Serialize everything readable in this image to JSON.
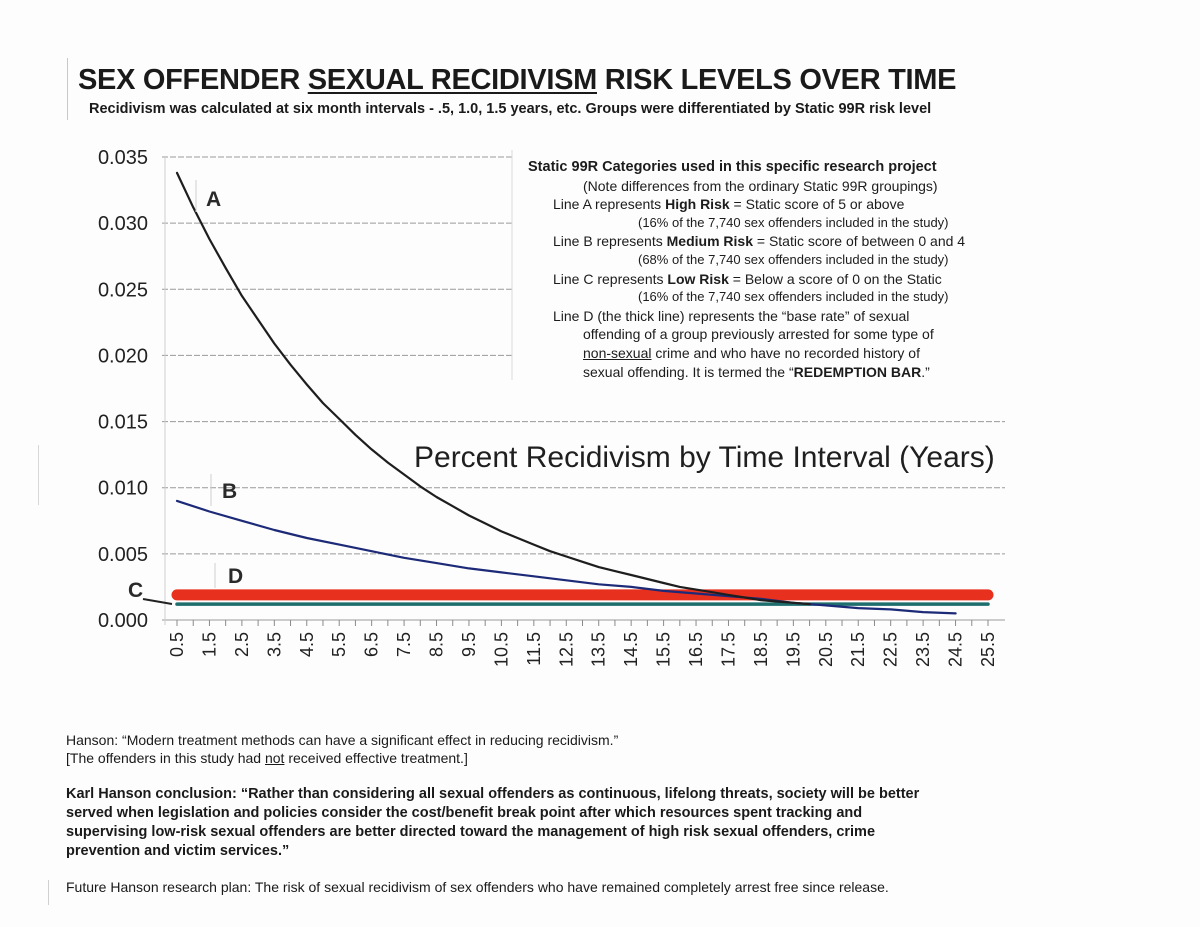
{
  "header": {
    "title_pre": "SEX OFFENDER ",
    "title_underlined": "SEXUAL RECIDIVISM",
    "title_post": " RISK LEVELS OVER TIME",
    "subtitle": "Recidivism was calculated at six month intervals - .5, 1.0, 1.5 years, etc.   Groups were differentiated by Static 99R risk level"
  },
  "legend": {
    "heading": "Static 99R Categories used in this specific research project",
    "note": "(Note differences from the ordinary Static 99R groupings)",
    "lineA_pre": "Line A represents ",
    "lineA_bold": "High Risk",
    "lineA_post": " = Static score of 5 or above",
    "lineA_share": "(16% of the 7,740 sex offenders included in the study)",
    "lineB_pre": "Line B represents ",
    "lineB_bold": "Medium Risk",
    "lineB_post": " = Static score of between 0 and 4",
    "lineB_share": "(68% of the 7,740 sex offenders included in the study)",
    "lineC_pre": "Line C represents ",
    "lineC_bold": "Low Risk",
    "lineC_post": " = Below a score of 0 on the Static",
    "lineC_share": "(16% of the 7,740 sex offenders included in the study)",
    "lineD_1": "Line D (the thick line) represents the “base rate” of sexual",
    "lineD_2": "offending of a group previously arrested for some type of",
    "lineD_3_underlined": "non-sexual",
    "lineD_3_post": " crime and who have no recorded history of",
    "lineD_4_pre": "sexual offending.  It is termed the “",
    "lineD_4_bold": "REDEMPTION BAR",
    "lineD_4_post": ".”"
  },
  "notes": {
    "quote1": "Hanson: “Modern treatment methods can have a significant effect in reducing recidivism.”",
    "bracket_pre": "[The offenders in this study had ",
    "bracket_underlined": "not",
    "bracket_post": " received effective treatment.]",
    "conclusion_1": "Karl Hanson conclusion: “Rather than considering all sexual offenders as continuous, lifelong threats, society will be better",
    "conclusion_2": "served when legislation and policies consider the cost/benefit break point after which resources spent tracking and",
    "conclusion_3": "supervising low-risk sexual offenders are better directed toward the management of high risk sexual offenders, crime",
    "conclusion_4": "prevention and victim services.”",
    "future": "Future Hanson research plan: The risk of sexual recidivism of sex offenders who have remained completely arrest free since release."
  },
  "chart_data": {
    "type": "line",
    "title": "Percent Recidivism by Time Interval (Years)",
    "xlabel": "",
    "ylabel": "",
    "ylim": [
      0,
      0.035
    ],
    "xlim": [
      0.5,
      25.5
    ],
    "yticks": [
      "0.000",
      "0.005",
      "0.010",
      "0.015",
      "0.020",
      "0.025",
      "0.030",
      "0.035"
    ],
    "ytick_values": [
      0,
      0.005,
      0.01,
      0.015,
      0.02,
      0.025,
      0.03,
      0.035
    ],
    "xticks": [
      "0.5",
      "1.5",
      "2.5",
      "3.5",
      "4.5",
      "5.5",
      "6.5",
      "7.5",
      "8.5",
      "9.5",
      "10.5",
      "11.5",
      "12.5",
      "13.5",
      "14.5",
      "15.5",
      "16.5",
      "17.5",
      "18.5",
      "19.5",
      "20.5",
      "21.5",
      "22.5",
      "23.5",
      "24.5",
      "25.5"
    ],
    "grid": true,
    "colors": {
      "A": "#1e1e1e",
      "B": "#1c2a78",
      "C": "#1f6e6e",
      "D": "#e8301e"
    },
    "series": [
      {
        "name": "A",
        "label": "A",
        "x": [
          0.5,
          1,
          1.5,
          2,
          2.5,
          3,
          3.5,
          4,
          4.5,
          5,
          5.5,
          6,
          6.5,
          7,
          7.5,
          8,
          8.5,
          9,
          9.5,
          10,
          10.5,
          11,
          11.5,
          12,
          12.5,
          13,
          13.5,
          14,
          14.5,
          15,
          15.5,
          16,
          16.5,
          17,
          17.5,
          18,
          18.5,
          19,
          19.5,
          20
        ],
        "values": [
          0.0338,
          0.0312,
          0.0288,
          0.0266,
          0.0245,
          0.0227,
          0.0209,
          0.0193,
          0.0178,
          0.0164,
          0.0152,
          0.014,
          0.0129,
          0.0119,
          0.011,
          0.0101,
          0.0093,
          0.0086,
          0.0079,
          0.0073,
          0.0067,
          0.0062,
          0.0057,
          0.0052,
          0.0048,
          0.0044,
          0.004,
          0.0037,
          0.0034,
          0.0031,
          0.0028,
          0.0025,
          0.0023,
          0.0021,
          0.0019,
          0.0017,
          0.0015,
          0.0014,
          0.0013,
          0.0012
        ]
      },
      {
        "name": "B",
        "label": "B",
        "x": [
          0.5,
          1.5,
          2.5,
          3.5,
          4.5,
          5.5,
          6.5,
          7.5,
          8.5,
          9.5,
          10.5,
          11.5,
          12.5,
          13.5,
          14.5,
          15.5,
          16.5,
          17.5,
          18.5,
          19.5,
          20.5,
          21.5,
          22.5,
          23.5,
          24.5
        ],
        "values": [
          0.009,
          0.0082,
          0.0075,
          0.0068,
          0.0062,
          0.0057,
          0.0052,
          0.0047,
          0.0043,
          0.0039,
          0.0036,
          0.0033,
          0.003,
          0.0027,
          0.0025,
          0.0022,
          0.002,
          0.0018,
          0.0016,
          0.0013,
          0.0011,
          0.0009,
          0.0008,
          0.0006,
          0.0005
        ]
      },
      {
        "name": "C",
        "label": "C",
        "x": [
          0.5,
          25.5
        ],
        "values": [
          0.0012,
          0.0012
        ]
      },
      {
        "name": "D",
        "label": "D",
        "x": [
          0.5,
          25.5
        ],
        "values": [
          0.0019,
          0.0019
        ]
      }
    ]
  }
}
